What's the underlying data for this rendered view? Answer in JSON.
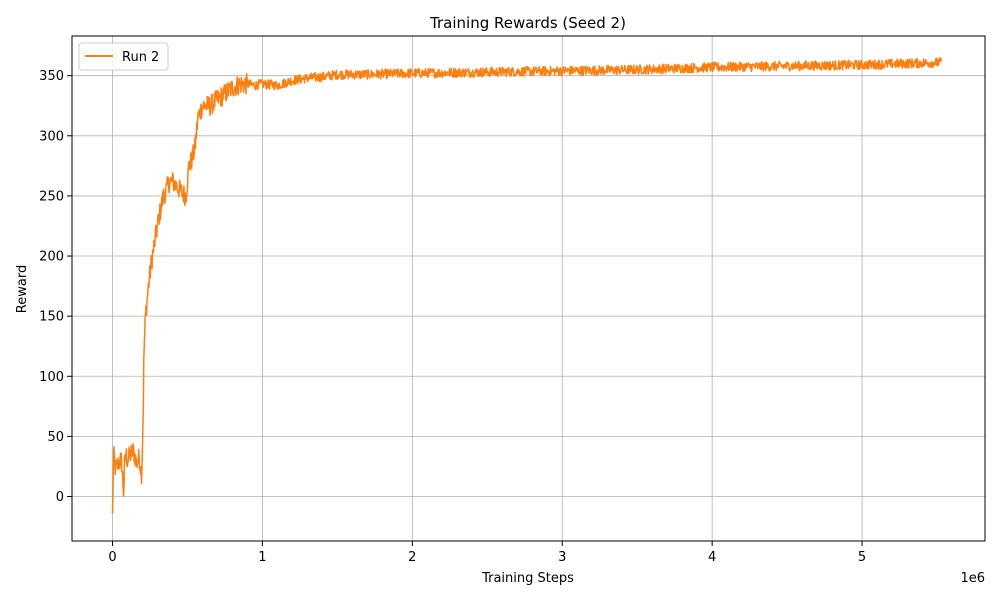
{
  "chart_data": {
    "type": "line",
    "title": "Training Rewards (Seed 2)",
    "xlabel": "Training Steps",
    "ylabel": "Reward",
    "x_offset_label": "1e6",
    "x_scale": 1000000,
    "xlim": [
      -270000,
      5820000
    ],
    "ylim": [
      -37,
      383
    ],
    "x_ticks": [
      0,
      1000000,
      2000000,
      3000000,
      4000000,
      5000000
    ],
    "x_tick_labels": [
      "0",
      "1",
      "2",
      "3",
      "4",
      "5"
    ],
    "y_ticks": [
      0,
      50,
      100,
      150,
      200,
      250,
      300,
      350
    ],
    "y_tick_labels": [
      "0",
      "50",
      "100",
      "150",
      "200",
      "250",
      "300",
      "350"
    ],
    "grid": true,
    "legend_position": "top-left",
    "series": [
      {
        "name": "Run 2",
        "color": "#ff7f0e",
        "noise_amplitude": 4,
        "x": [
          0,
          5000,
          10000,
          20000,
          40000,
          60000,
          75000,
          80000,
          90000,
          100000,
          120000,
          140000,
          160000,
          180000,
          195000,
          200000,
          205000,
          210000,
          220000,
          240000,
          260000,
          280000,
          300000,
          320000,
          340000,
          360000,
          380000,
          400000,
          430000,
          460000,
          490000,
          510000,
          530000,
          550000,
          570000,
          600000,
          650000,
          700000,
          750000,
          800000,
          850000,
          900000,
          950000,
          1000000,
          1100000,
          1200000,
          1300000,
          1400000,
          1500000,
          1700000,
          2000000,
          2500000,
          3000000,
          3500000,
          4000000,
          4500000,
          5000000,
          5530000
        ],
        "y": [
          -17,
          20,
          35,
          22,
          28,
          30,
          2,
          25,
          35,
          30,
          35,
          38,
          28,
          32,
          18,
          45,
          70,
          120,
          150,
          175,
          195,
          210,
          225,
          238,
          250,
          255,
          262,
          262,
          258,
          253,
          250,
          275,
          280,
          290,
          315,
          325,
          325,
          330,
          335,
          340,
          343,
          343,
          342,
          343,
          342,
          346,
          348,
          349,
          351,
          351,
          352,
          353,
          354,
          355,
          357,
          358,
          359,
          361
        ]
      }
    ]
  }
}
